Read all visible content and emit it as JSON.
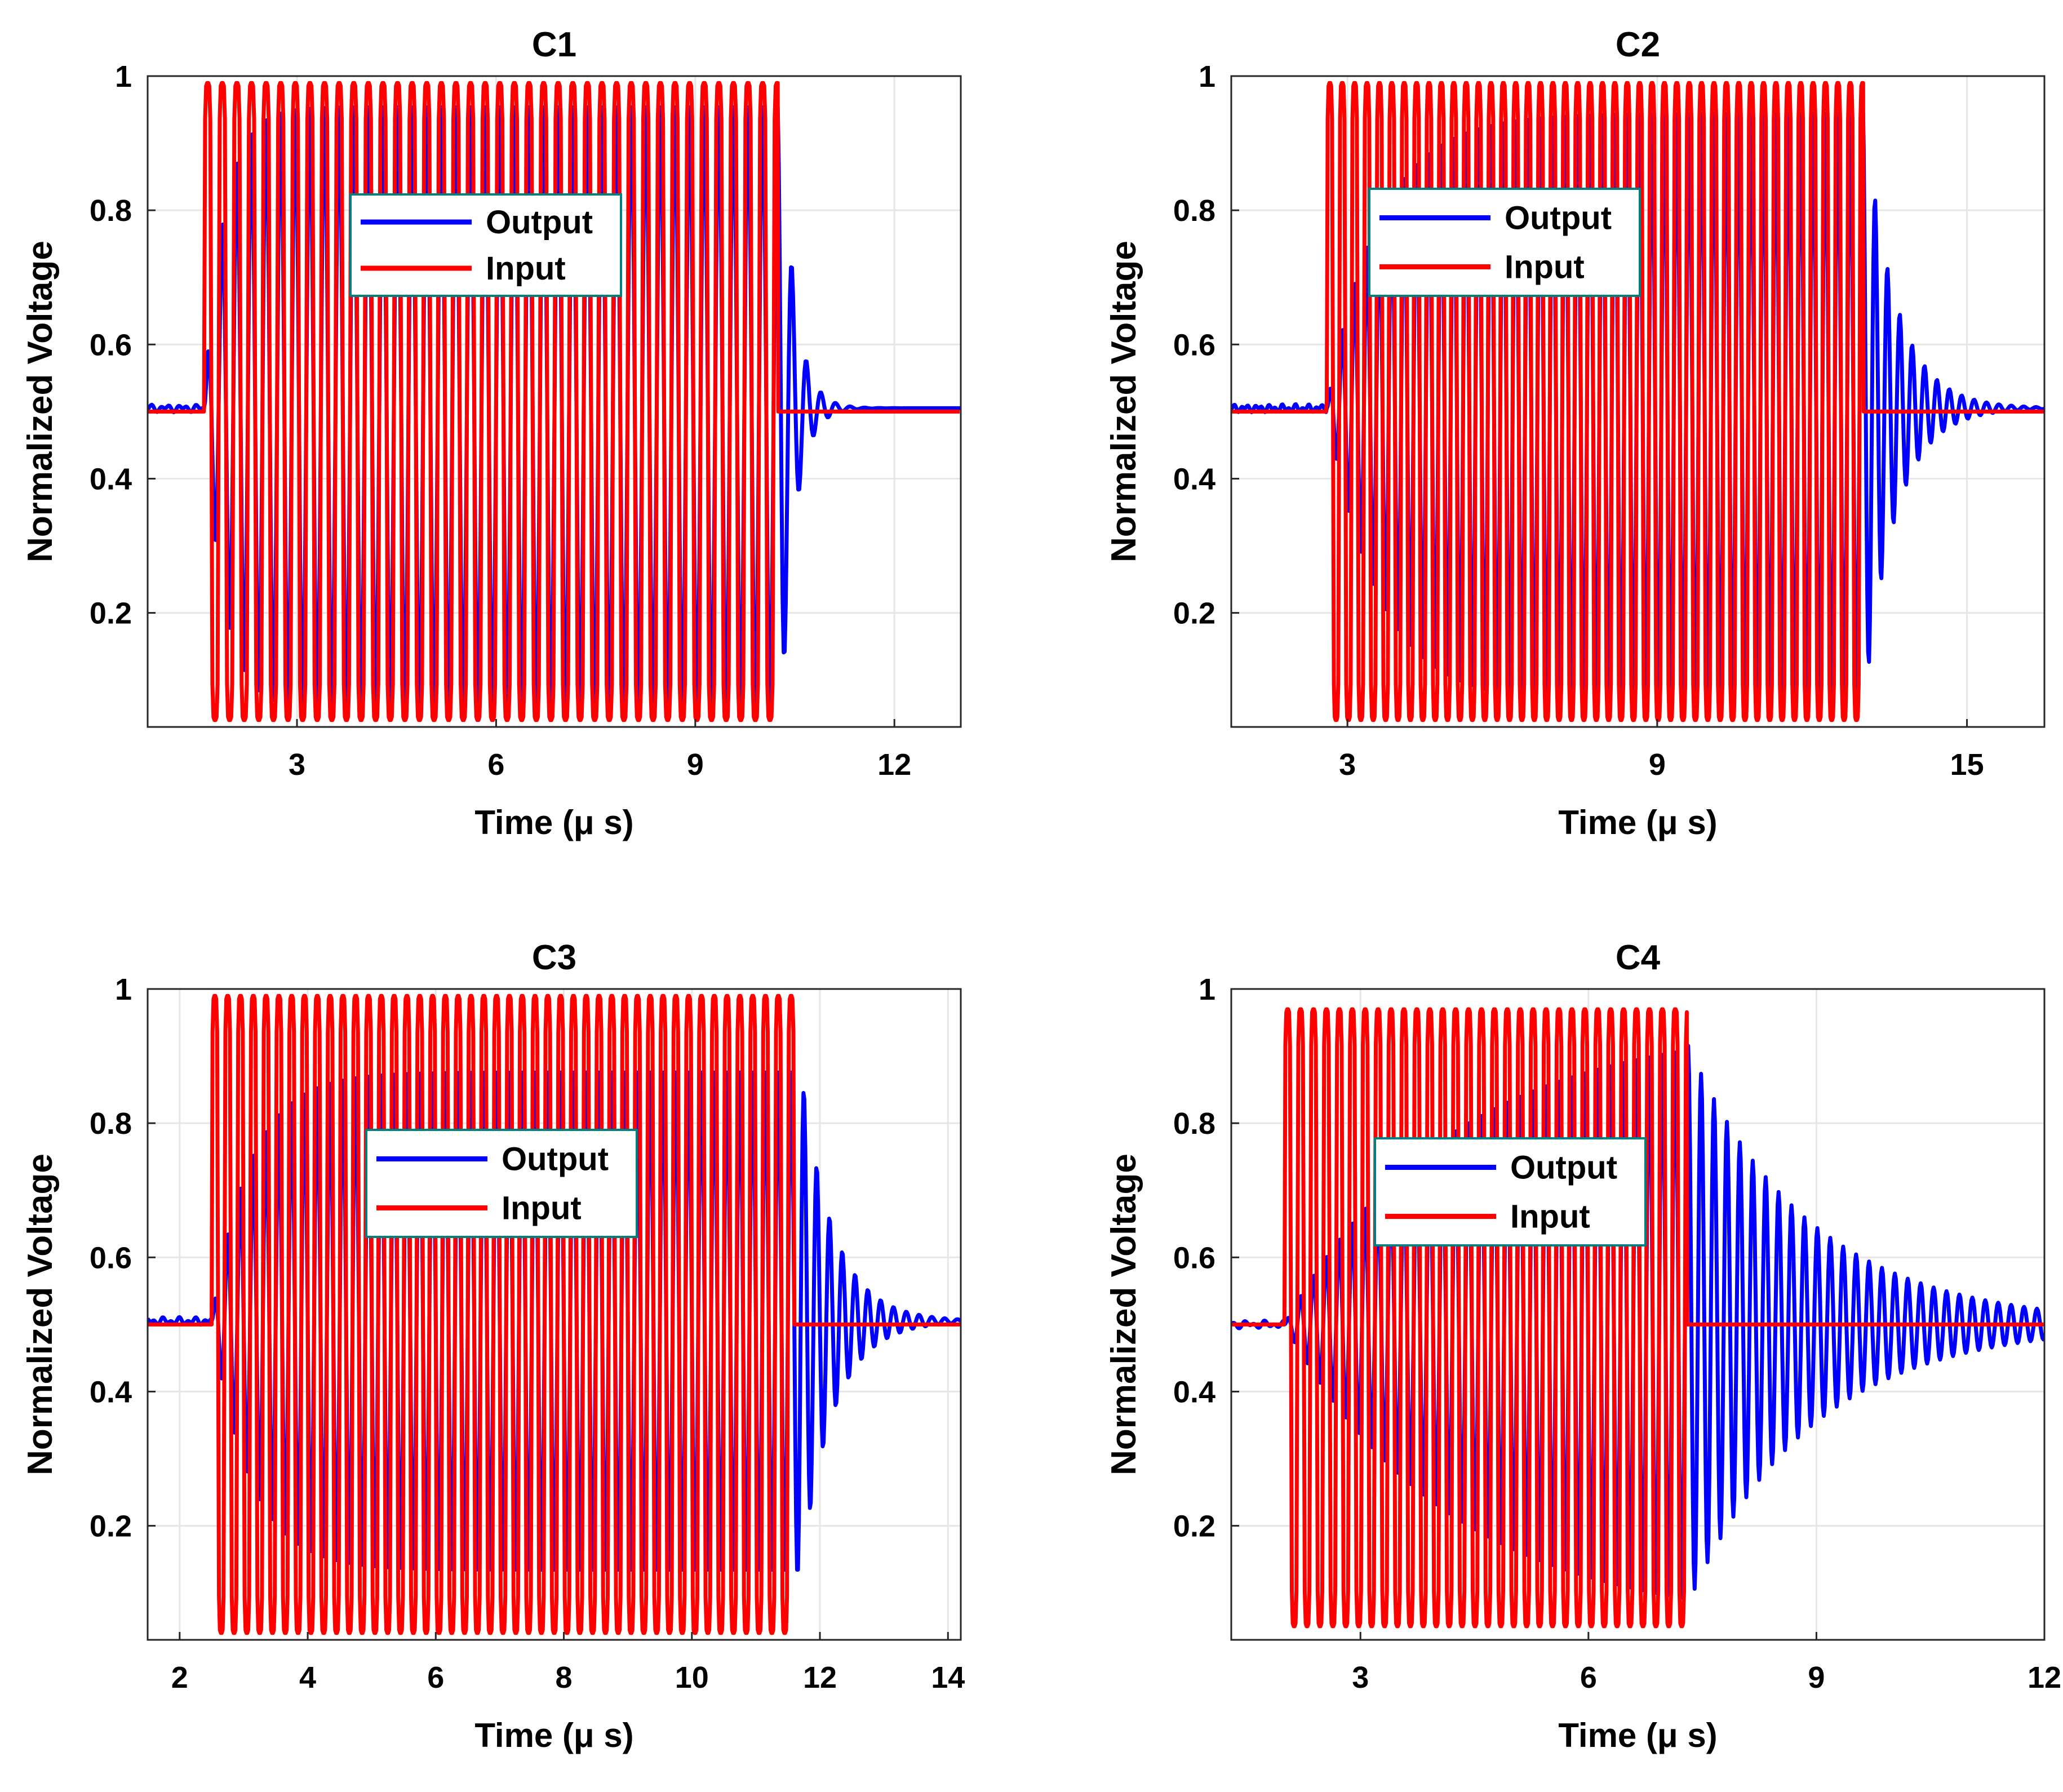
{
  "figure": {
    "description_free": true
  },
  "colors": {
    "output": "#0000ff",
    "input": "#ff0000",
    "legend_border": "#008080",
    "grid": "#e6e6e6",
    "axis": "#262626",
    "background": "#ffffff"
  },
  "legend": {
    "entries": [
      "Output",
      "Input"
    ]
  },
  "chart_data": [
    {
      "type": "line",
      "title": "C1",
      "xlabel": "Time (μ s)",
      "ylabel": "Normalized Voltage",
      "xlim": [
        0.75,
        13.0
      ],
      "ylim": [
        0.03,
        1.0
      ],
      "xticks": [
        3,
        6,
        9,
        12
      ],
      "xtick_labels": [
        "3",
        "6",
        "9",
        "12"
      ],
      "yticks": [
        0.2,
        0.4,
        0.6,
        0.8,
        1.0
      ],
      "ytick_labels": [
        "0.2",
        "0.4",
        "0.6",
        "0.8",
        "1"
      ],
      "grid": true,
      "legend_position": "top-center",
      "series": [
        {
          "name": "Output",
          "color": "#0000ff",
          "baseline": 0.505,
          "start": 1.6,
          "end": 10.3,
          "period": 0.22,
          "tau_rise": 0.3,
          "tau_fall": 0.2,
          "env_max": 0.46
        },
        {
          "name": "Input",
          "color": "#ff0000",
          "baseline": 0.5,
          "start": 1.6,
          "end": 10.25,
          "period": 0.22,
          "lo": 0.04,
          "hi": 0.99
        }
      ]
    },
    {
      "type": "line",
      "title": "C2",
      "xlabel": "Time (μ s)",
      "ylabel": "Normalized Voltage",
      "xlim": [
        0.75,
        16.5
      ],
      "ylim": [
        0.03,
        1.0
      ],
      "xticks": [
        3,
        9,
        15
      ],
      "xtick_labels": [
        "3",
        "9",
        "15"
      ],
      "yticks": [
        0.2,
        0.4,
        0.6,
        0.8,
        1.0
      ],
      "ytick_labels": [
        "0.2",
        "0.4",
        "0.6",
        "0.8",
        "1"
      ],
      "grid": true,
      "legend_position": "top-center",
      "series": [
        {
          "name": "Output",
          "color": "#0000ff",
          "baseline": 0.505,
          "start": 2.6,
          "end": 13.0,
          "period": 0.24,
          "tau_rise": 1.0,
          "tau_fall": 0.6,
          "env_max": 0.45
        },
        {
          "name": "Input",
          "color": "#ff0000",
          "baseline": 0.5,
          "start": 2.6,
          "end": 13.0,
          "period": 0.24,
          "lo": 0.04,
          "hi": 0.99
        }
      ]
    },
    {
      "type": "line",
      "title": "C3",
      "xlabel": "Time (μ s)",
      "ylabel": "Normalized Voltage",
      "xlim": [
        1.5,
        14.2
      ],
      "ylim": [
        0.03,
        1.0
      ],
      "xticks": [
        2,
        4,
        6,
        8,
        10,
        12,
        14
      ],
      "xtick_labels": [
        "2",
        "4",
        "6",
        "8",
        "10",
        "12",
        "14"
      ],
      "yticks": [
        0.2,
        0.4,
        0.6,
        0.8,
        1.0
      ],
      "ytick_labels": [
        "0.2",
        "0.4",
        "0.6",
        "0.8",
        "1"
      ],
      "grid": true,
      "legend_position": "top-center",
      "series": [
        {
          "name": "Output",
          "color": "#0000ff",
          "baseline": 0.505,
          "start": 2.5,
          "end": 11.7,
          "period": 0.2,
          "tau_rise": 0.6,
          "tau_fall": 0.5,
          "env_max": 0.38
        },
        {
          "name": "Input",
          "color": "#ff0000",
          "baseline": 0.5,
          "start": 2.5,
          "end": 11.6,
          "period": 0.2,
          "lo": 0.04,
          "hi": 0.99
        }
      ]
    },
    {
      "type": "line",
      "title": "C4",
      "xlabel": "Time (μ s)",
      "ylabel": "Normalized Voltage",
      "xlim": [
        1.3,
        12.0
      ],
      "ylim": [
        0.03,
        1.0
      ],
      "xticks": [
        3,
        6,
        9,
        12
      ],
      "xtick_labels": [
        "3",
        "6",
        "9",
        "12"
      ],
      "yticks": [
        0.2,
        0.4,
        0.6,
        0.8,
        1.0
      ],
      "ytick_labels": [
        "0.2",
        "0.4",
        "0.6",
        "0.8",
        "1"
      ],
      "grid": true,
      "legend_position": "center-left",
      "series": [
        {
          "name": "Output",
          "color": "#0000ff",
          "baseline": 0.5,
          "start": 2.0,
          "end": 7.3,
          "period": 0.17,
          "tau_rise": 2.2,
          "tau_fall": 1.6,
          "env_max": 0.46
        },
        {
          "name": "Input",
          "color": "#ff0000",
          "baseline": 0.5,
          "start": 2.0,
          "end": 7.3,
          "period": 0.17,
          "lo": 0.05,
          "hi": 0.97
        }
      ]
    }
  ]
}
